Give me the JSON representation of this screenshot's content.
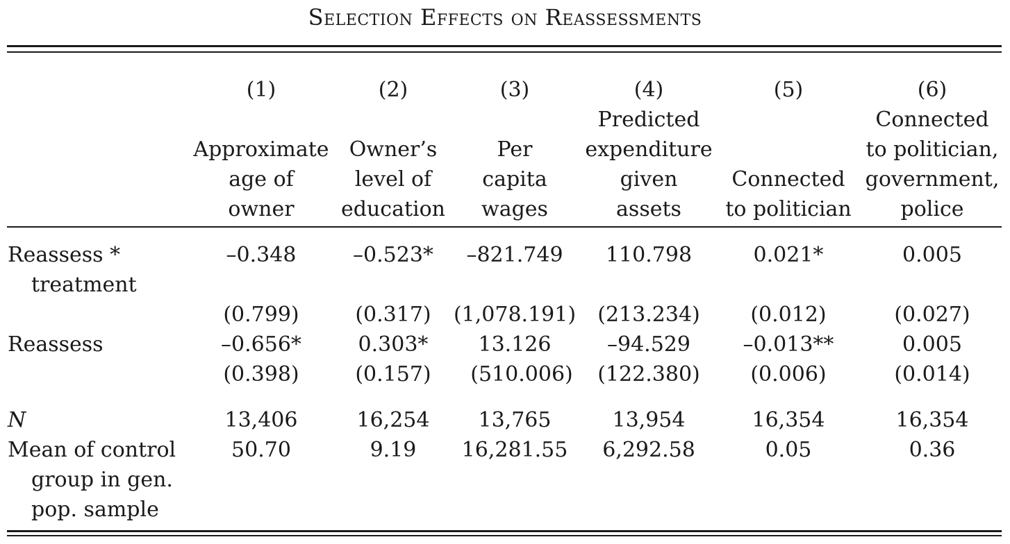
{
  "table": {
    "title": "Selection Effects on Reassessments",
    "columns": [
      {
        "num": "(1)",
        "label_lines": [
          "Approximate",
          "age of",
          "owner"
        ]
      },
      {
        "num": "(2)",
        "label_lines": [
          "Owner’s",
          "level of",
          "education"
        ]
      },
      {
        "num": "(3)",
        "label_lines": [
          "Per",
          "capita",
          "wages"
        ]
      },
      {
        "num": "(4)",
        "label_lines": [
          "Predicted",
          "expenditure",
          "given",
          "assets"
        ]
      },
      {
        "num": "(5)",
        "label_lines": [
          "Connected",
          "to politician"
        ]
      },
      {
        "num": "(6)",
        "label_lines": [
          "Connected",
          "to politician,",
          "government,",
          "police"
        ]
      }
    ],
    "rows": [
      {
        "label_lines": [
          "Reassess *",
          "treatment"
        ],
        "estimates": [
          "–0.348",
          "–0.523*",
          "–821.749",
          "110.798",
          "0.021*",
          "0.005"
        ],
        "std_errors": [
          "(0.799)",
          "(0.317)",
          "(1,078.191)",
          "(213.234)",
          "(0.012)",
          "(0.027)"
        ]
      },
      {
        "label_lines": [
          "Reassess"
        ],
        "estimates": [
          "–0.656*",
          "0.303*",
          "13.126",
          "–94.529",
          "–0.013**",
          "0.005"
        ],
        "std_errors": [
          "(0.398)",
          "(0.157)",
          "(510.006)",
          "(122.380)",
          "(0.006)",
          "(0.014)"
        ]
      }
    ],
    "stats": [
      {
        "label_lines": [
          "N"
        ],
        "values": [
          "13,406",
          "16,254",
          "13,765",
          "13,954",
          "16,354",
          "16,354"
        ]
      },
      {
        "label_lines": [
          "Mean of control",
          "group in gen.",
          "pop. sample"
        ],
        "values": [
          "50.70",
          "9.19",
          "16,281.55",
          "6,292.58",
          "0.05",
          "0.36"
        ]
      }
    ]
  }
}
